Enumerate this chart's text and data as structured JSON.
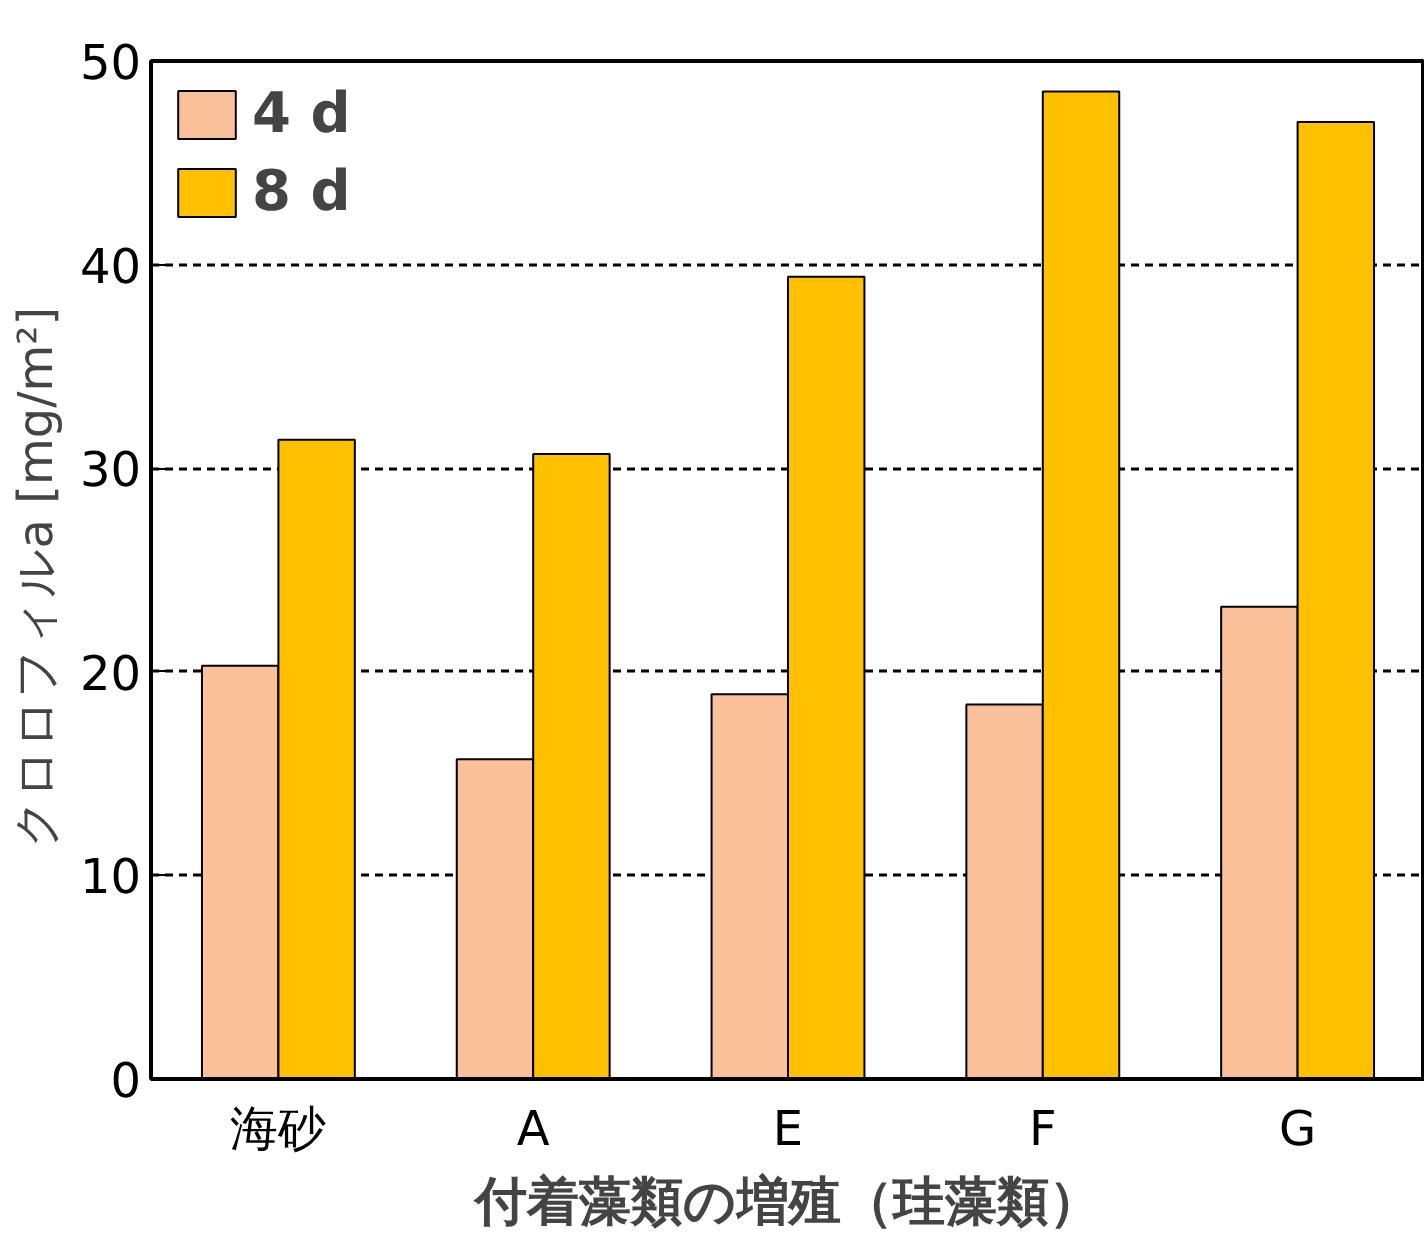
{
  "chart_data": {
    "type": "bar",
    "xlabel": "付着藻類の増殖（珪藻類）",
    "ylabel": "クロロフィルa  [mg/m²]",
    "categories": [
      "海砂",
      "A",
      "E",
      "F",
      "G"
    ],
    "series": [
      {
        "name": "4 d",
        "color": "#f9c09a",
        "values": [
          20.3,
          15.7,
          18.9,
          18.4,
          23.2
        ]
      },
      {
        "name": "8 d",
        "color": "#ffc000",
        "values": [
          31.4,
          30.7,
          39.4,
          48.5,
          47.0
        ]
      }
    ],
    "ylim": [
      0,
      50
    ],
    "yticks": [
      0,
      10,
      20,
      30,
      40,
      50
    ],
    "grid": "y",
    "legend": "top left"
  }
}
